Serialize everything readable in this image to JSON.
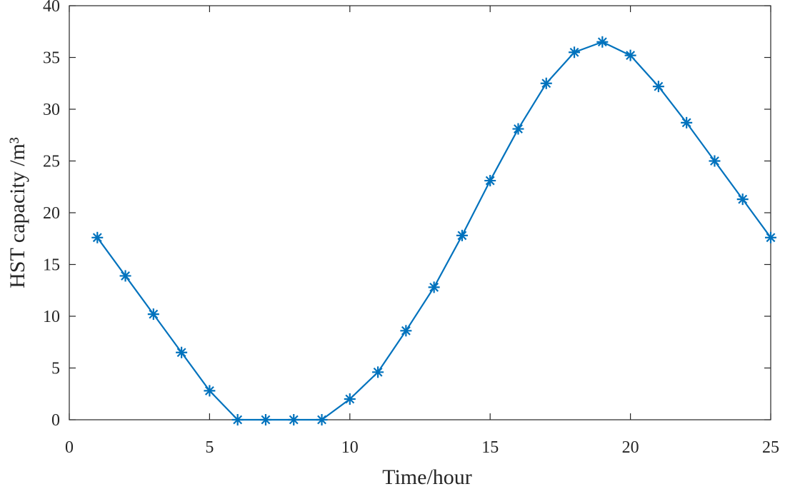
{
  "chart_data": {
    "type": "line",
    "xlabel": "Time/hour",
    "ylabel": "HST capacity /m³",
    "xlim": [
      0,
      25
    ],
    "ylim": [
      0,
      40
    ],
    "xticks": [
      0,
      5,
      10,
      15,
      20,
      25
    ],
    "yticks": [
      0,
      5,
      10,
      15,
      20,
      25,
      30,
      35,
      40
    ],
    "grid": false,
    "series": [
      {
        "color": "#0072BD",
        "marker": "asterisk",
        "x": [
          1,
          2,
          3,
          4,
          5,
          6,
          7,
          8,
          9,
          10,
          11,
          12,
          13,
          14,
          15,
          16,
          17,
          18,
          19,
          20,
          21,
          22,
          23,
          24,
          25
        ],
        "y": [
          17.6,
          13.9,
          10.2,
          6.5,
          2.8,
          0,
          0,
          0,
          0,
          2.0,
          4.6,
          8.6,
          12.8,
          17.8,
          23.1,
          28.1,
          32.5,
          35.5,
          36.5,
          35.2,
          32.2,
          28.7,
          25.0,
          21.3,
          17.6
        ]
      }
    ]
  }
}
